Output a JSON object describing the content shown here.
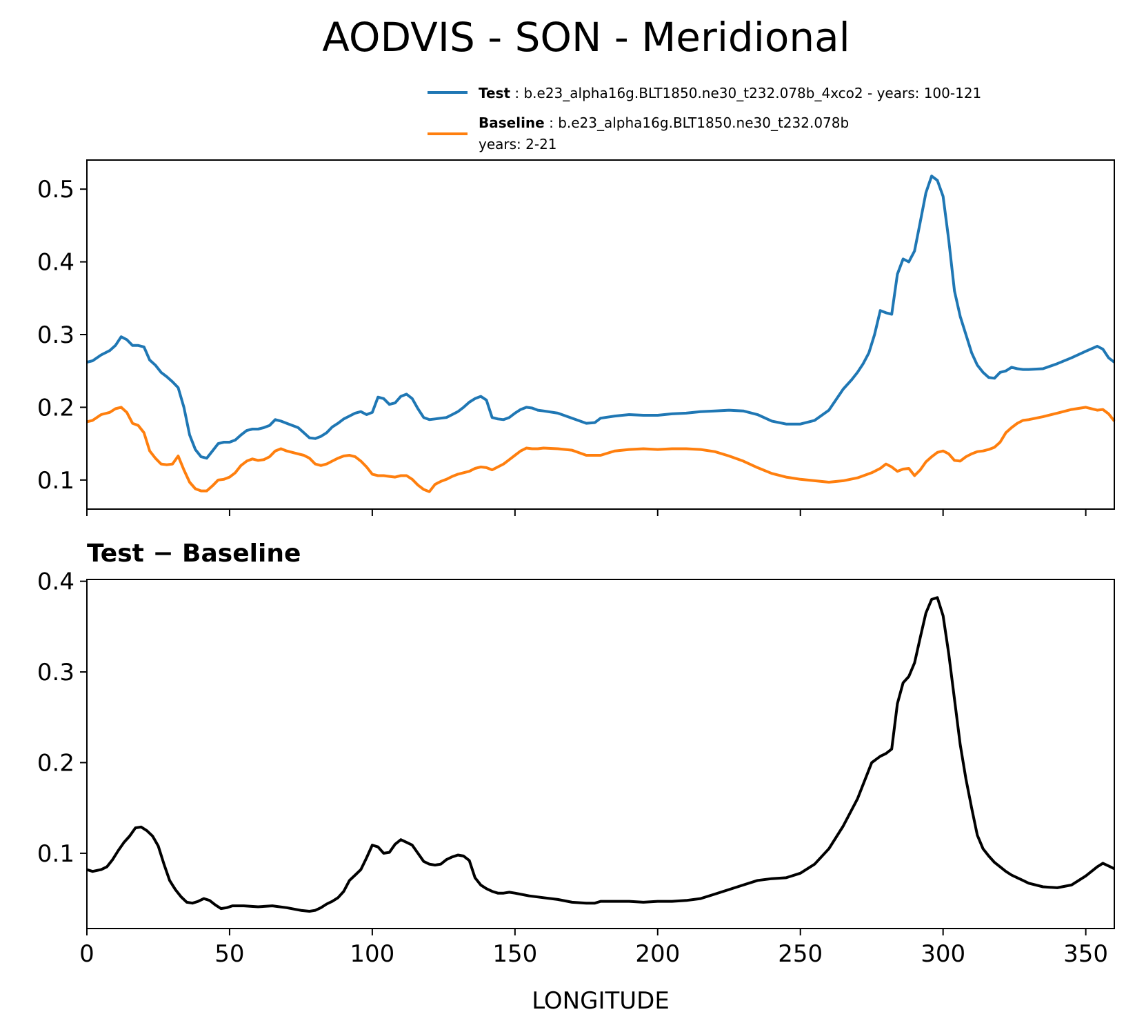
{
  "figure": {
    "title": "AODVIS - SON - Meridional",
    "background": "#ffffff"
  },
  "chart_data": [
    {
      "type": "line",
      "panel": "top",
      "title": "",
      "xlabel": "",
      "ylabel": "",
      "xlim": [
        0,
        360
      ],
      "ylim": [
        0.06,
        0.54
      ],
      "xticks": [
        0,
        50,
        100,
        150,
        200,
        250,
        300,
        350
      ],
      "yticks": [
        0.1,
        0.2,
        0.3,
        0.4,
        0.5
      ],
      "ytick_labels": [
        "0.1",
        "0.2",
        "0.3",
        "0.4",
        "0.5"
      ],
      "grid": false,
      "legend_position": "above-right",
      "legend": [
        {
          "series": "Test",
          "name": "Test",
          "text": ": b.e23_alpha16g.BLT1850.ne30_t232.078b_4xco2 - years: 100-121",
          "text2": ""
        },
        {
          "series": "Baseline",
          "name": "Baseline",
          "text": ": b.e23_alpha16g.BLT1850.ne30_t232.078b",
          "text2": "years: 2-21"
        }
      ],
      "series": [
        {
          "name": "Test",
          "color": "#1f77b4",
          "x": [
            0,
            2,
            5,
            8,
            10,
            12,
            14,
            16,
            18,
            20,
            22,
            24,
            26,
            28,
            30,
            32,
            34,
            36,
            38,
            40,
            42,
            44,
            46,
            48,
            50,
            52,
            54,
            56,
            58,
            60,
            62,
            64,
            66,
            68,
            70,
            72,
            74,
            76,
            78,
            80,
            82,
            84,
            86,
            88,
            90,
            92,
            94,
            96,
            98,
            100,
            102,
            104,
            106,
            108,
            110,
            112,
            114,
            116,
            118,
            120,
            122,
            124,
            126,
            128,
            130,
            132,
            134,
            136,
            138,
            140,
            142,
            144,
            146,
            148,
            150,
            152,
            154,
            156,
            158,
            160,
            165,
            170,
            175,
            178,
            180,
            185,
            190,
            195,
            200,
            205,
            210,
            215,
            220,
            225,
            230,
            235,
            240,
            245,
            250,
            255,
            260,
            265,
            268,
            270,
            272,
            274,
            276,
            278,
            280,
            282,
            284,
            286,
            288,
            290,
            292,
            294,
            296,
            298,
            300,
            302,
            304,
            306,
            308,
            310,
            312,
            314,
            316,
            318,
            320,
            322,
            324,
            326,
            328,
            330,
            335,
            340,
            345,
            350,
            354,
            356,
            358,
            360
          ],
          "y": [
            0.262,
            0.264,
            0.272,
            0.278,
            0.285,
            0.297,
            0.293,
            0.285,
            0.285,
            0.283,
            0.265,
            0.258,
            0.248,
            0.242,
            0.235,
            0.227,
            0.2,
            0.162,
            0.142,
            0.132,
            0.13,
            0.14,
            0.15,
            0.152,
            0.152,
            0.155,
            0.162,
            0.168,
            0.17,
            0.17,
            0.172,
            0.175,
            0.183,
            0.181,
            0.178,
            0.175,
            0.172,
            0.165,
            0.158,
            0.157,
            0.16,
            0.165,
            0.173,
            0.178,
            0.184,
            0.188,
            0.192,
            0.194,
            0.19,
            0.193,
            0.214,
            0.212,
            0.204,
            0.206,
            0.215,
            0.218,
            0.212,
            0.198,
            0.186,
            0.183,
            0.184,
            0.185,
            0.186,
            0.19,
            0.194,
            0.2,
            0.207,
            0.212,
            0.215,
            0.21,
            0.186,
            0.184,
            0.183,
            0.186,
            0.192,
            0.197,
            0.2,
            0.199,
            0.196,
            0.195,
            0.192,
            0.185,
            0.178,
            0.179,
            0.185,
            0.188,
            0.19,
            0.189,
            0.189,
            0.191,
            0.192,
            0.194,
            0.195,
            0.196,
            0.195,
            0.19,
            0.181,
            0.177,
            0.177,
            0.182,
            0.196,
            0.225,
            0.238,
            0.248,
            0.26,
            0.275,
            0.3,
            0.333,
            0.33,
            0.328,
            0.383,
            0.404,
            0.4,
            0.415,
            0.455,
            0.495,
            0.518,
            0.512,
            0.49,
            0.43,
            0.36,
            0.325,
            0.3,
            0.275,
            0.258,
            0.248,
            0.241,
            0.24,
            0.248,
            0.25,
            0.255,
            0.253,
            0.252,
            0.252,
            0.253,
            0.26,
            0.268,
            0.277,
            0.284,
            0.28,
            0.268,
            0.262
          ]
        },
        {
          "name": "Baseline",
          "color": "#ff7f0e",
          "x": [
            0,
            2,
            5,
            8,
            10,
            12,
            14,
            16,
            18,
            20,
            22,
            24,
            26,
            28,
            30,
            32,
            34,
            36,
            38,
            40,
            42,
            44,
            46,
            48,
            50,
            52,
            54,
            56,
            58,
            60,
            62,
            64,
            66,
            68,
            70,
            72,
            74,
            76,
            78,
            80,
            82,
            84,
            86,
            88,
            90,
            92,
            94,
            96,
            98,
            100,
            102,
            104,
            106,
            108,
            110,
            112,
            114,
            116,
            118,
            120,
            122,
            124,
            126,
            128,
            130,
            132,
            134,
            136,
            138,
            140,
            142,
            144,
            146,
            148,
            150,
            152,
            154,
            156,
            158,
            160,
            165,
            170,
            175,
            180,
            185,
            190,
            195,
            200,
            205,
            210,
            215,
            220,
            225,
            230,
            235,
            240,
            245,
            250,
            255,
            260,
            265,
            270,
            275,
            278,
            280,
            282,
            284,
            286,
            288,
            290,
            292,
            294,
            296,
            298,
            300,
            302,
            304,
            306,
            308,
            310,
            312,
            314,
            316,
            318,
            320,
            322,
            324,
            326,
            328,
            330,
            335,
            340,
            345,
            350,
            354,
            356,
            358,
            360
          ],
          "y": [
            0.18,
            0.182,
            0.19,
            0.193,
            0.198,
            0.2,
            0.193,
            0.178,
            0.175,
            0.165,
            0.14,
            0.13,
            0.122,
            0.121,
            0.122,
            0.133,
            0.114,
            0.097,
            0.088,
            0.085,
            0.085,
            0.092,
            0.1,
            0.101,
            0.104,
            0.11,
            0.12,
            0.126,
            0.129,
            0.127,
            0.128,
            0.132,
            0.14,
            0.143,
            0.14,
            0.138,
            0.136,
            0.134,
            0.13,
            0.122,
            0.12,
            0.122,
            0.126,
            0.13,
            0.133,
            0.134,
            0.132,
            0.126,
            0.118,
            0.108,
            0.106,
            0.106,
            0.105,
            0.104,
            0.106,
            0.106,
            0.101,
            0.093,
            0.087,
            0.084,
            0.094,
            0.098,
            0.101,
            0.105,
            0.108,
            0.11,
            0.112,
            0.116,
            0.118,
            0.117,
            0.114,
            0.118,
            0.122,
            0.128,
            0.134,
            0.14,
            0.144,
            0.143,
            0.143,
            0.144,
            0.143,
            0.141,
            0.134,
            0.134,
            0.14,
            0.142,
            0.143,
            0.142,
            0.143,
            0.143,
            0.142,
            0.139,
            0.133,
            0.126,
            0.117,
            0.109,
            0.104,
            0.101,
            0.099,
            0.097,
            0.099,
            0.103,
            0.11,
            0.116,
            0.122,
            0.118,
            0.112,
            0.115,
            0.116,
            0.106,
            0.114,
            0.125,
            0.132,
            0.138,
            0.14,
            0.136,
            0.127,
            0.126,
            0.132,
            0.136,
            0.139,
            0.14,
            0.142,
            0.145,
            0.152,
            0.165,
            0.172,
            0.178,
            0.182,
            0.183,
            0.187,
            0.192,
            0.197,
            0.2,
            0.196,
            0.197,
            0.191,
            0.181
          ]
        }
      ]
    },
    {
      "type": "line",
      "panel": "bottom",
      "title": "Test − Baseline",
      "xlabel": "LONGITUDE",
      "ylabel": "",
      "xlim": [
        0,
        360
      ],
      "ylim": [
        0.017,
        0.402
      ],
      "xticks": [
        0,
        50,
        100,
        150,
        200,
        250,
        300,
        350
      ],
      "xtick_labels": [
        "0",
        "50",
        "100",
        "150",
        "200",
        "250",
        "300",
        "350"
      ],
      "yticks": [
        0.1,
        0.2,
        0.3,
        0.4
      ],
      "ytick_labels": [
        "0.1",
        "0.2",
        "0.3",
        "0.4"
      ],
      "grid": false,
      "series": [
        {
          "name": "Test − Baseline",
          "color": "#000000",
          "x": [
            0,
            2,
            5,
            7,
            9,
            11,
            13,
            15,
            17,
            19,
            21,
            23,
            25,
            27,
            29,
            31,
            33,
            35,
            37,
            39,
            41,
            43,
            45,
            47,
            49,
            51,
            53,
            55,
            60,
            65,
            70,
            75,
            78,
            80,
            82,
            84,
            86,
            88,
            90,
            92,
            94,
            96,
            98,
            100,
            102,
            104,
            106,
            108,
            110,
            112,
            114,
            116,
            118,
            120,
            122,
            124,
            126,
            128,
            130,
            132,
            134,
            136,
            138,
            140,
            142,
            144,
            146,
            148,
            150,
            155,
            160,
            165,
            170,
            175,
            178,
            180,
            185,
            190,
            195,
            200,
            205,
            210,
            215,
            220,
            225,
            230,
            235,
            240,
            245,
            250,
            255,
            260,
            265,
            270,
            275,
            278,
            280,
            282,
            284,
            286,
            288,
            290,
            292,
            294,
            296,
            298,
            300,
            302,
            304,
            306,
            308,
            310,
            312,
            314,
            316,
            318,
            320,
            322,
            324,
            326,
            328,
            330,
            335,
            340,
            345,
            350,
            354,
            356,
            358,
            360
          ],
          "y": [
            0.082,
            0.08,
            0.082,
            0.085,
            0.093,
            0.103,
            0.112,
            0.119,
            0.128,
            0.129,
            0.125,
            0.119,
            0.108,
            0.088,
            0.07,
            0.06,
            0.052,
            0.046,
            0.045,
            0.047,
            0.05,
            0.048,
            0.043,
            0.039,
            0.04,
            0.042,
            0.042,
            0.042,
            0.041,
            0.042,
            0.04,
            0.037,
            0.036,
            0.037,
            0.04,
            0.044,
            0.047,
            0.051,
            0.058,
            0.07,
            0.076,
            0.082,
            0.095,
            0.109,
            0.107,
            0.1,
            0.101,
            0.11,
            0.115,
            0.112,
            0.109,
            0.1,
            0.091,
            0.088,
            0.087,
            0.088,
            0.093,
            0.096,
            0.098,
            0.097,
            0.092,
            0.073,
            0.065,
            0.061,
            0.058,
            0.056,
            0.056,
            0.057,
            0.056,
            0.053,
            0.051,
            0.049,
            0.046,
            0.045,
            0.045,
            0.047,
            0.047,
            0.047,
            0.046,
            0.047,
            0.047,
            0.048,
            0.05,
            0.055,
            0.06,
            0.065,
            0.07,
            0.072,
            0.073,
            0.078,
            0.088,
            0.105,
            0.13,
            0.16,
            0.2,
            0.207,
            0.21,
            0.215,
            0.265,
            0.288,
            0.295,
            0.31,
            0.338,
            0.365,
            0.38,
            0.382,
            0.362,
            0.32,
            0.27,
            0.22,
            0.182,
            0.15,
            0.12,
            0.105,
            0.097,
            0.09,
            0.085,
            0.08,
            0.076,
            0.073,
            0.07,
            0.067,
            0.063,
            0.062,
            0.065,
            0.075,
            0.085,
            0.089,
            0.086,
            0.083
          ]
        }
      ]
    }
  ]
}
